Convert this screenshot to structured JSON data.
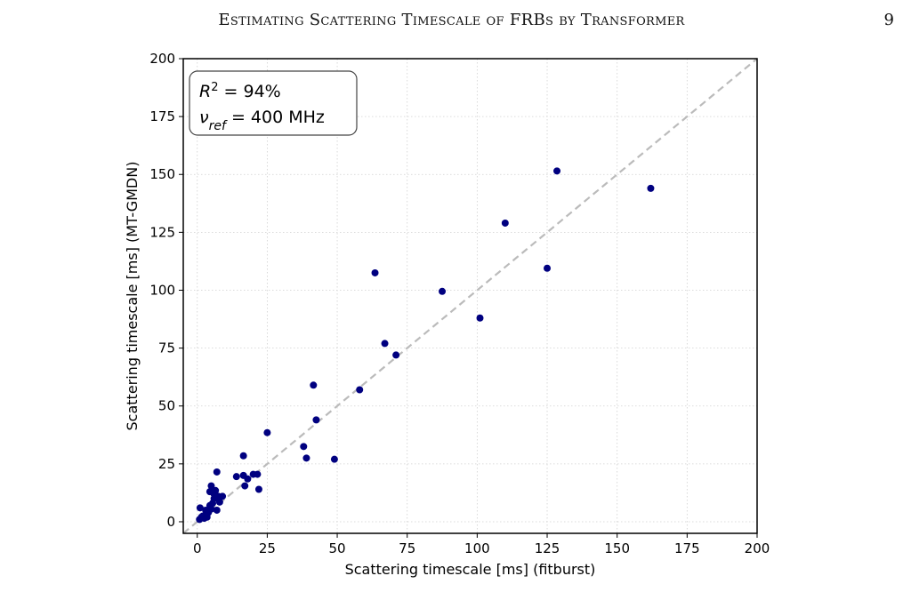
{
  "running_head": {
    "title": "Estimating Scattering Timescale of FRBs by Transformer",
    "page_number": "9"
  },
  "chart_data": {
    "type": "scatter",
    "xlabel": "Scattering timescale [ms] (fitburst)",
    "ylabel": "Scattering timescale [ms] (MT-GMDN)",
    "xlim": [
      -5,
      200
    ],
    "ylim": [
      -5,
      200
    ],
    "xticks": [
      0,
      25,
      50,
      75,
      100,
      125,
      150,
      175,
      200
    ],
    "yticks": [
      0,
      25,
      50,
      75,
      100,
      125,
      150,
      175,
      200
    ],
    "grid": true,
    "reference_line": {
      "type": "y=x",
      "style": "dashed",
      "color": "#bbbbbb"
    },
    "point_color": "#000080",
    "annotation": {
      "r2_symbol": "R",
      "r2_exponent": "2",
      "r2_value": " = 94%",
      "nu_symbol": "ν",
      "nu_subscript": "ref",
      "nu_value": " = 400 MHz",
      "position": "top-left"
    },
    "points": [
      [
        0.8,
        1.0
      ],
      [
        1.0,
        6.0
      ],
      [
        1.5,
        2.0
      ],
      [
        2.0,
        2.5
      ],
      [
        2.5,
        1.5
      ],
      [
        3.0,
        5.0
      ],
      [
        3.0,
        3.0
      ],
      [
        3.5,
        2.0
      ],
      [
        4.0,
        4.0
      ],
      [
        4.5,
        7.0
      ],
      [
        4.5,
        13.0
      ],
      [
        5.0,
        15.5
      ],
      [
        5.0,
        5.5
      ],
      [
        5.5,
        8.0
      ],
      [
        6.0,
        12.0
      ],
      [
        6.0,
        10.0
      ],
      [
        6.5,
        13.5
      ],
      [
        7.0,
        5.0
      ],
      [
        7.0,
        21.5
      ],
      [
        7.5,
        11.0
      ],
      [
        8.0,
        8.5
      ],
      [
        9.0,
        11.0
      ],
      [
        14.0,
        19.5
      ],
      [
        16.5,
        20.0
      ],
      [
        16.5,
        28.5
      ],
      [
        17.0,
        15.5
      ],
      [
        18.0,
        18.5
      ],
      [
        20.0,
        20.5
      ],
      [
        21.5,
        20.5
      ],
      [
        22.0,
        14.0
      ],
      [
        25.0,
        38.5
      ],
      [
        38.0,
        32.5
      ],
      [
        39.0,
        27.5
      ],
      [
        41.5,
        59.0
      ],
      [
        42.5,
        44.0
      ],
      [
        49.0,
        27.0
      ],
      [
        58.0,
        57.0
      ],
      [
        63.5,
        107.5
      ],
      [
        67.0,
        77.0
      ],
      [
        71.0,
        72.0
      ],
      [
        87.5,
        99.5
      ],
      [
        101.0,
        88.0
      ],
      [
        110.0,
        129.0
      ],
      [
        125.0,
        109.5
      ],
      [
        128.5,
        151.5
      ],
      [
        162.0,
        144.0
      ]
    ]
  }
}
